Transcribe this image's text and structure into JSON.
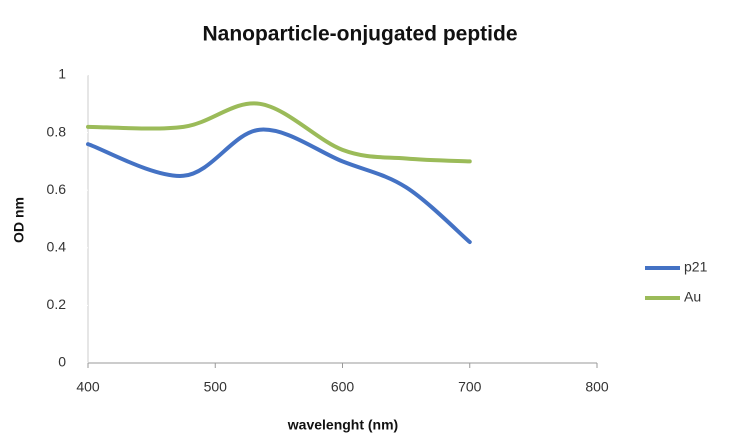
{
  "chart_data": {
    "type": "line",
    "title": "Nanoparticle-onjugated peptide",
    "x_label": "wavelenght (nm)",
    "y_label": "OD nm",
    "x": [
      400,
      475,
      535,
      600,
      650,
      700
    ],
    "series": [
      {
        "name": "p21",
        "color": "#4472c4",
        "values": [
          0.76,
          0.65,
          0.81,
          0.7,
          0.61,
          0.42
        ]
      },
      {
        "name": "Au",
        "color": "#9bbb59",
        "values": [
          0.82,
          0.82,
          0.9,
          0.74,
          0.71,
          0.7
        ]
      }
    ],
    "xlim": [
      400,
      800
    ],
    "xticks": [
      400,
      500,
      600,
      700,
      800
    ],
    "ylim": [
      0,
      1
    ],
    "yticks": [
      0,
      0.2,
      0.4,
      0.6,
      0.8,
      1
    ],
    "grid": false,
    "legend": "right"
  }
}
